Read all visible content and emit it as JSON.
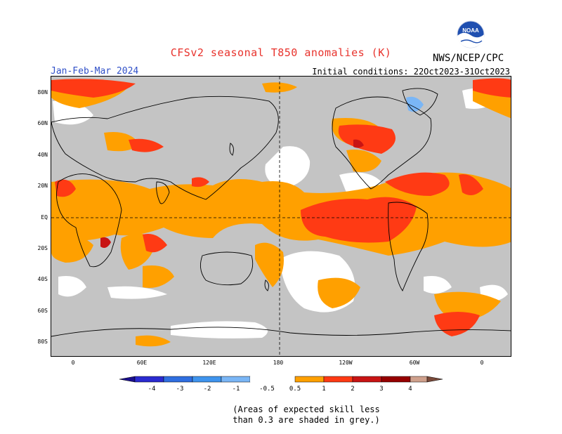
{
  "header": {
    "title": "CFSv2 seasonal T850 anomalies (K)",
    "period": "Jan-Feb-Mar 2024",
    "agency": "NWS/NCEP/CPC",
    "initial_conditions": "Initial conditions: 22Oct2023-31Oct2023"
  },
  "logo": {
    "text": "NOAA",
    "icon": "noaa-logo"
  },
  "map": {
    "lat_labels": [
      "80N",
      "60N",
      "40N",
      "20N",
      "EQ",
      "20S",
      "40S",
      "60S",
      "80S"
    ],
    "lon_labels": [
      "0",
      "60E",
      "120E",
      "180",
      "120W",
      "60W",
      "0"
    ],
    "background_color": "#c4c4c4",
    "land_outline_color": "#000000"
  },
  "legend": {
    "labels": [
      "-4",
      "-3",
      "-2",
      "-1",
      "-0.5",
      "0.5",
      "1",
      "2",
      "3",
      "4"
    ],
    "colors": [
      "#1a0f8c",
      "#2a2ad0",
      "#2f6ee0",
      "#3f94ee",
      "#7ab6f6",
      "#ffffff",
      "#ffa000",
      "#ff3a14",
      "#c81414",
      "#960000",
      "#cfa08c",
      "#7a4a3a"
    ]
  },
  "note": {
    "line1": "(Areas of expected skill less",
    "line2": "than 0.3 are shaded in grey.)"
  }
}
